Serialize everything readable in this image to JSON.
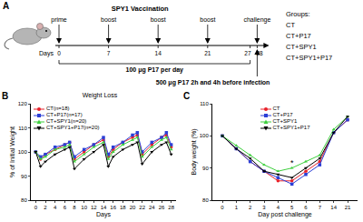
{
  "panel_a": {
    "panel_label": "A",
    "title": "SPY1 Vaccination",
    "axis_label": "Days",
    "events": [
      {
        "day": 0,
        "label": "prime"
      },
      {
        "day": 7,
        "label": "boost"
      },
      {
        "day": 14,
        "label": "boost"
      },
      {
        "day": 21,
        "label": "boost"
      },
      {
        "day": 28,
        "label": "challenge"
      }
    ],
    "ticks": [
      0,
      7,
      14,
      21,
      27,
      28
    ],
    "daily_note": {
      "from": 0,
      "to": 27,
      "text": "100 μg P17 per day"
    },
    "challenge_note": "500 μg P17 2h and 4h before infection",
    "groups_title": "Groups:",
    "groups": [
      "CT",
      "CT+P17",
      "CT+SPY1",
      "CT+SPY1+P17"
    ]
  },
  "chart_data": [
    {
      "type": "line",
      "panel_label": "B",
      "title": "Weight Loss",
      "x_label": "Days",
      "y_label": "% of Initial Weight",
      "x": [
        0,
        1,
        2,
        4,
        6,
        7,
        8,
        10,
        12,
        14,
        15,
        16,
        18,
        20,
        21,
        22,
        24,
        26,
        27,
        28
      ],
      "xlim": [
        -1,
        29
      ],
      "xticks": [
        0,
        2,
        4,
        6,
        8,
        10,
        12,
        14,
        16,
        18,
        20,
        22,
        24,
        26,
        28
      ],
      "ylim": [
        80,
        120
      ],
      "yticks": [
        80,
        90,
        100,
        110,
        120
      ],
      "grid": false,
      "legend": "top-left",
      "series": [
        {
          "name": "CT(n=18)",
          "color": "#e8202a",
          "marker": "circle",
          "line_style": "solid",
          "values": [
            100,
            97,
            99,
            101,
            103,
            104,
            97,
            100,
            103,
            105,
            98,
            101,
            104,
            106,
            107,
            99,
            103,
            106,
            107,
            102
          ]
        },
        {
          "name": "CT+P17(n=17)",
          "color": "#2b3fd6",
          "marker": "square",
          "line_style": "solid",
          "values": [
            100,
            98,
            99,
            102,
            103,
            104,
            98,
            101,
            103,
            106,
            99,
            102,
            104,
            107,
            108,
            100,
            104,
            106,
            108,
            103
          ]
        },
        {
          "name": "CT+SPY1(n=20)",
          "color": "#3ecf3e",
          "marker": "triangle-up",
          "line_style": "solid",
          "values": [
            100,
            97,
            98,
            101,
            102,
            103,
            96,
            99,
            102,
            104,
            97,
            100,
            103,
            105,
            106,
            98,
            102,
            105,
            106,
            101
          ]
        },
        {
          "name": "CT+SPY1+P17(n=20)",
          "color": "#000000",
          "marker": "triangle-down",
          "line_style": "solid",
          "values": [
            100,
            94,
            96,
            99,
            101,
            102,
            93,
            97,
            100,
            103,
            94,
            98,
            101,
            103,
            104,
            95,
            100,
            103,
            104,
            99
          ]
        }
      ]
    },
    {
      "type": "line",
      "panel_label": "C",
      "x_label": "Day post challenge",
      "y_label": "Body weight (%)",
      "categories": [
        "0",
        "1",
        "2",
        "3",
        "4",
        "5",
        "6",
        "7",
        "14",
        "21"
      ],
      "ylim": [
        80,
        110
      ],
      "yticks": [
        80,
        90,
        100,
        110
      ],
      "grid": false,
      "legend": "top",
      "annotations": [
        {
          "text": "*",
          "x": 5
        }
      ],
      "series": [
        {
          "name": "CT",
          "color": "#e8202a",
          "marker": "circle",
          "line_style": "solid",
          "values": [
            100,
            96,
            92,
            89,
            86,
            86,
            89,
            92,
            101,
            105
          ]
        },
        {
          "name": "CT+P17",
          "color": "#2b3fd6",
          "marker": "square",
          "line_style": "solid",
          "values": [
            100,
            96,
            92,
            89,
            87,
            85,
            88,
            91,
            101,
            105
          ]
        },
        {
          "name": "CT+SPY1",
          "color": "#3ecf3e",
          "marker": "triangle-up",
          "line_style": "solid",
          "values": [
            100,
            97,
            94,
            91,
            89,
            90,
            92,
            94,
            102,
            106
          ]
        },
        {
          "name": "CT+SPY1+P17",
          "color": "#000000",
          "marker": "triangle-down",
          "line_style": "solid",
          "values": [
            100,
            96,
            93,
            89,
            88,
            87,
            90,
            93,
            101,
            106
          ]
        }
      ]
    }
  ]
}
